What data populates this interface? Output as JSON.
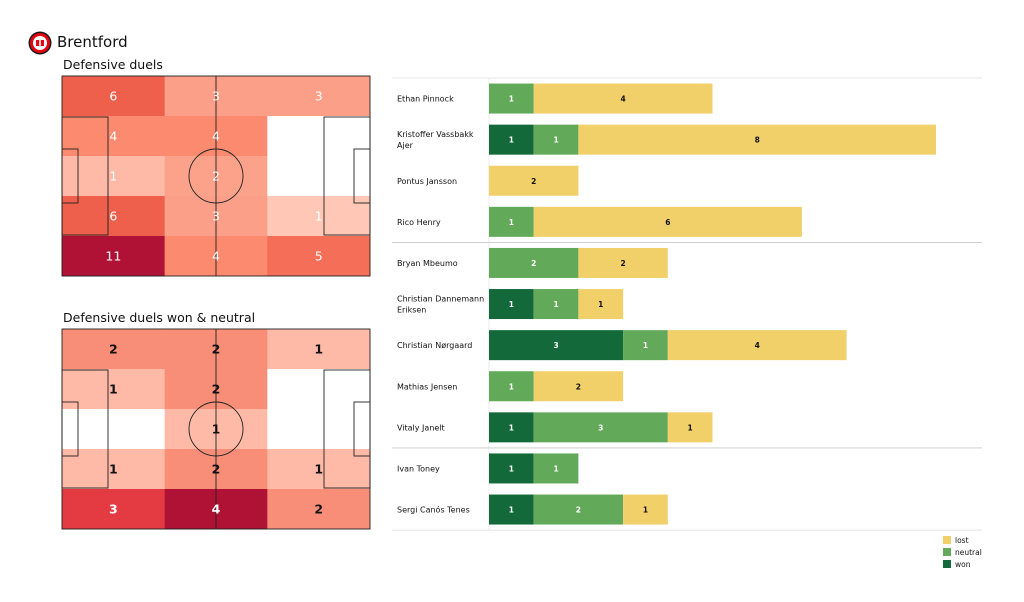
{
  "header": {
    "team_name": "Brentford",
    "logo": "brentford-crest-icon"
  },
  "colors": {
    "won": "#13693a",
    "neutral": "#62a95a",
    "lost": "#f1d06a",
    "separator": "#c8c8c8"
  },
  "chart_data": [
    {
      "type": "heatmap",
      "title": "Defensive duels",
      "rows": 5,
      "cols": 3,
      "values": [
        [
          6,
          3,
          3
        ],
        [
          4,
          4,
          0
        ],
        [
          1,
          2,
          0
        ],
        [
          6,
          3,
          1
        ],
        [
          11,
          4,
          5
        ]
      ],
      "labels": [
        [
          "6",
          "3",
          "3"
        ],
        [
          "4",
          "4",
          ""
        ],
        [
          "1",
          "2",
          ""
        ],
        [
          "6",
          "3",
          "1"
        ],
        [
          "11",
          "4",
          "5"
        ]
      ],
      "cell_colors": [
        [
          "#ee5f4c",
          "#fc9f88",
          "#fc9f88"
        ],
        [
          "#fc8a6f",
          "#fc8a6f",
          "#ffffff"
        ],
        [
          "#feb9a7",
          "#fca18a",
          "#ffffff"
        ],
        [
          "#ee5f4c",
          "#fc9f88",
          "#fec7b6"
        ],
        [
          "#af1234",
          "#fc8a6f",
          "#f46e58"
        ]
      ],
      "label_color": "#ffffff"
    },
    {
      "type": "heatmap",
      "title": "Defensive duels won & neutral",
      "rows": 5,
      "cols": 3,
      "values": [
        [
          2,
          2,
          1
        ],
        [
          1,
          2,
          0
        ],
        [
          0,
          1,
          0
        ],
        [
          1,
          2,
          1
        ],
        [
          3,
          4,
          2
        ]
      ],
      "labels": [
        [
          "2",
          "2",
          "1"
        ],
        [
          "1",
          "2",
          ""
        ],
        [
          "",
          "1",
          ""
        ],
        [
          "1",
          "2",
          "1"
        ],
        [
          "3",
          "4",
          "2"
        ]
      ],
      "cell_colors": [
        [
          "#f98e78",
          "#f98e78",
          "#feb9a7"
        ],
        [
          "#feb9a7",
          "#f98e78",
          "#ffffff"
        ],
        [
          "#ffffff",
          "#feb9a7",
          "#ffffff"
        ],
        [
          "#feb9a7",
          "#f98e78",
          "#feb9a7"
        ],
        [
          "#e43a42",
          "#af1234",
          "#f98e78"
        ]
      ],
      "label_color": "#111111",
      "label_color_dark": "#ffffff"
    },
    {
      "type": "bar",
      "orientation": "horizontal",
      "stacked": true,
      "categories": [
        "Ethan Pinnock",
        "Kristoffer Vassbakk Ajer",
        "Pontus Jansson",
        "Rico Henry",
        "Bryan Mbeumo",
        "Christian  Dannemann Eriksen",
        "Christian Nørgaard",
        "Mathias Jensen",
        "Vitaly Janelt",
        "Ivan Toney",
        "Sergi Canós Tenes"
      ],
      "category_lines": [
        [
          "Ethan Pinnock"
        ],
        [
          "Kristoffer Vassbakk",
          "Ajer"
        ],
        [
          "Pontus Jansson"
        ],
        [
          "Rico Henry"
        ],
        [
          "Bryan Mbeumo"
        ],
        [
          "Christian  Dannemann",
          "Eriksen"
        ],
        [
          "Christian Nørgaard"
        ],
        [
          "Mathias Jensen"
        ],
        [
          "Vitaly Janelt"
        ],
        [
          "Ivan Toney"
        ],
        [
          "Sergi Canós Tenes"
        ]
      ],
      "group_breaks_after": [
        3,
        8
      ],
      "series": [
        {
          "name": "won",
          "values": [
            0,
            1,
            0,
            0,
            0,
            1,
            3,
            0,
            1,
            1,
            1
          ]
        },
        {
          "name": "neutral",
          "values": [
            1,
            1,
            0,
            1,
            2,
            1,
            1,
            1,
            3,
            1,
            2
          ]
        },
        {
          "name": "lost",
          "values": [
            4,
            8,
            2,
            6,
            2,
            1,
            4,
            2,
            1,
            0,
            1
          ]
        }
      ],
      "legend": {
        "position": "bottom-right",
        "order": [
          "lost",
          "neutral",
          "won"
        ]
      }
    }
  ]
}
